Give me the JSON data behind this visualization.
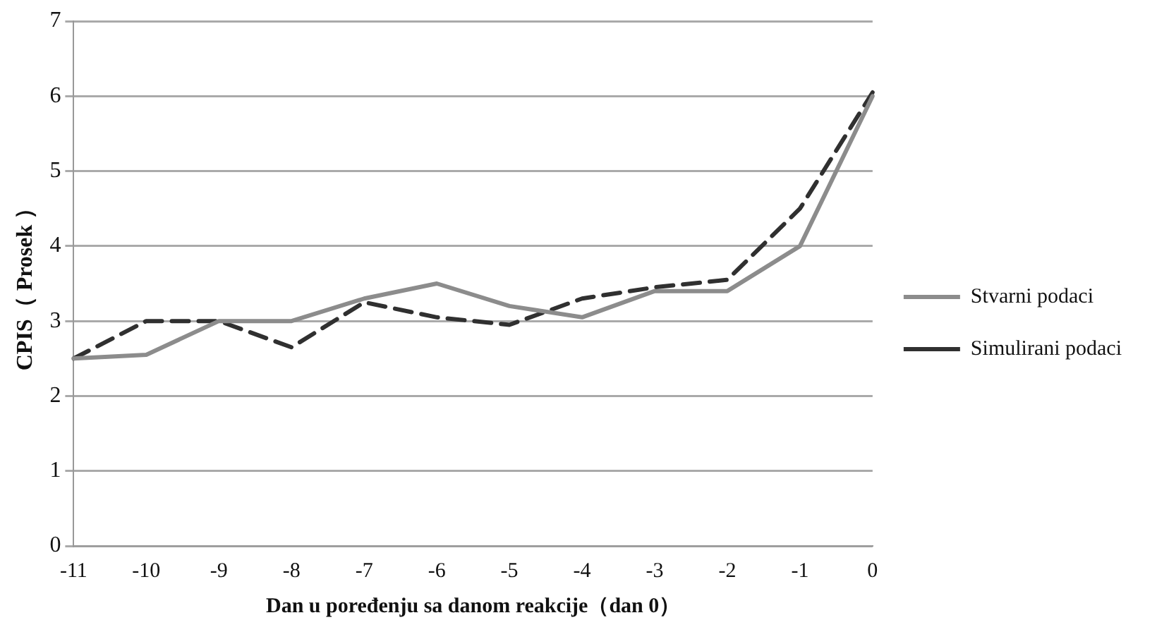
{
  "chart_data": {
    "type": "line",
    "xlabel": "Dan u poređenju sa danom reakcije（dan 0）",
    "ylabel": "CPIS（ Prosek ）",
    "categories": [
      "-11",
      "-10",
      "-9",
      "-8",
      "-7",
      "-6",
      "-5",
      "-4",
      "-3",
      "-2",
      "-1",
      "0"
    ],
    "series": [
      {
        "name": "Stvarni podaci",
        "color": "#8c8c8c",
        "line_style": "solid",
        "values": [
          2.5,
          2.55,
          3.0,
          3.0,
          3.3,
          3.5,
          3.2,
          3.05,
          3.4,
          3.4,
          4.0,
          6.0
        ]
      },
      {
        "name": "Simulirani podaci",
        "color": "#303030",
        "line_style": "dashed",
        "values": [
          2.5,
          3.0,
          3.0,
          2.65,
          3.25,
          3.05,
          2.95,
          3.3,
          3.45,
          3.55,
          4.5,
          6.05
        ]
      }
    ],
    "ylim": [
      0,
      7
    ],
    "yticks": [
      0,
      1,
      2,
      3,
      4,
      5,
      6,
      7
    ],
    "grid": "y",
    "legend": "right",
    "marker": "none"
  }
}
